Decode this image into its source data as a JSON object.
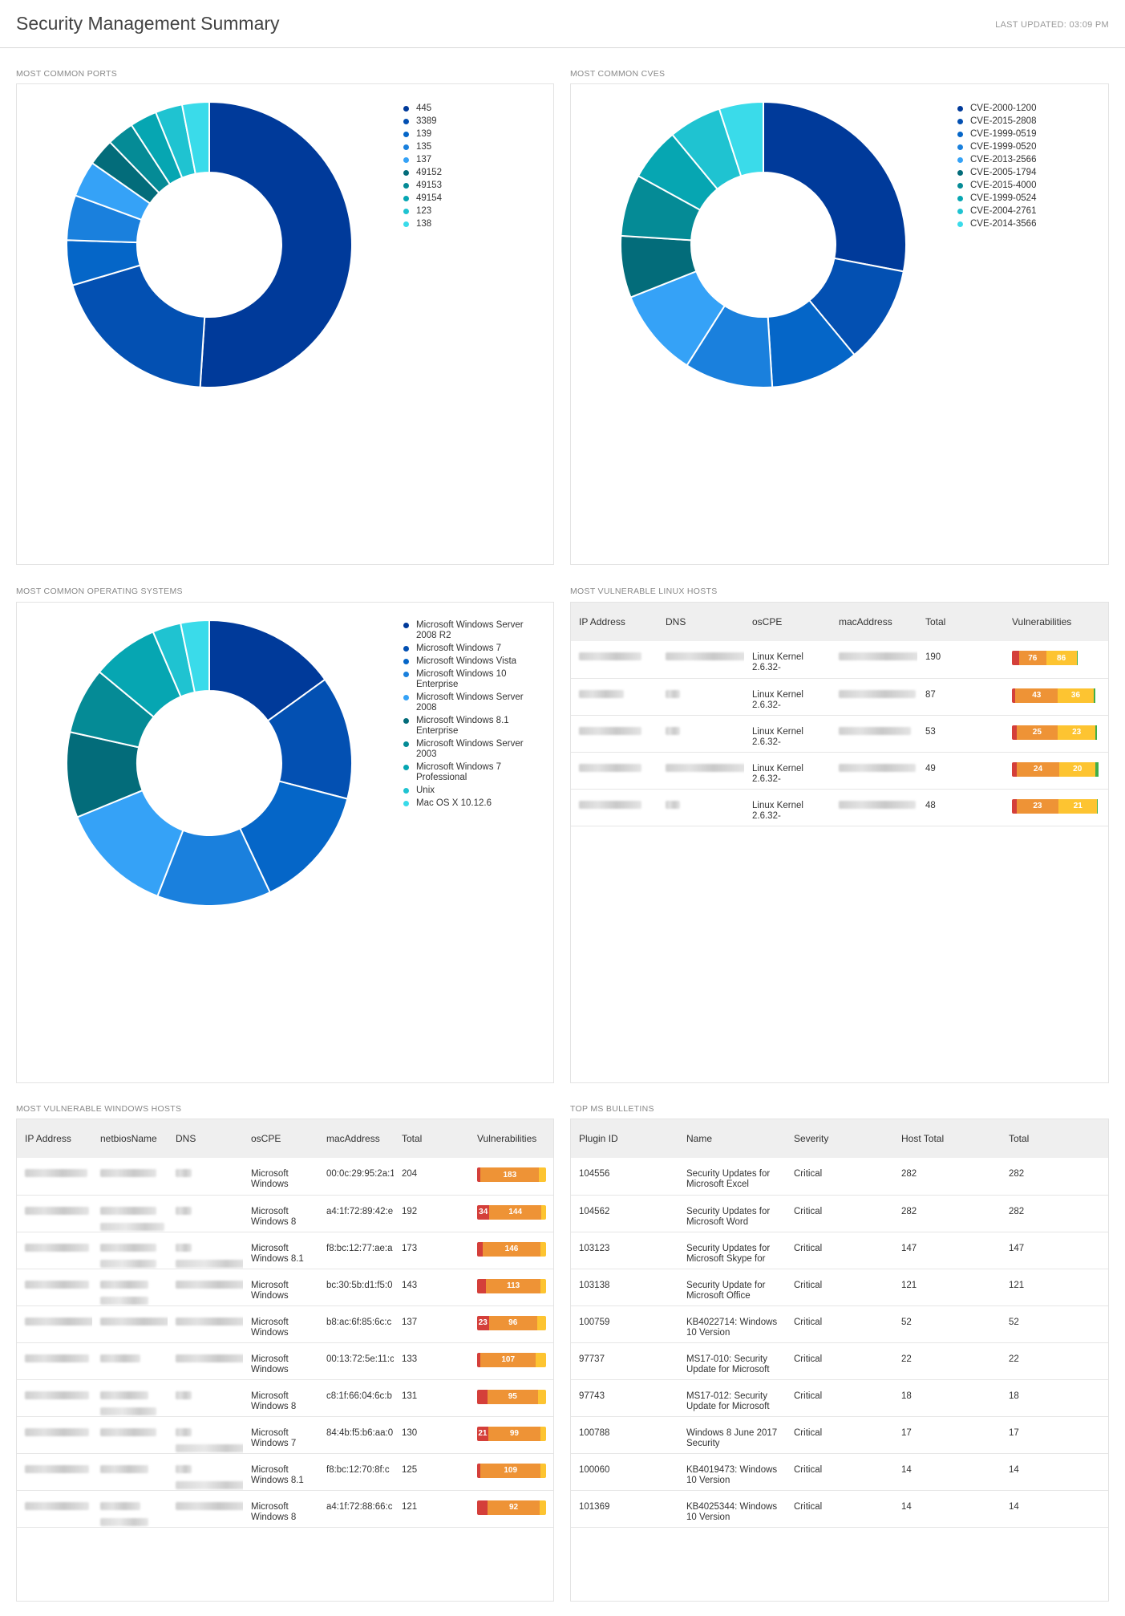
{
  "header": {
    "title": "Security Management Summary",
    "last_updated": "LAST UPDATED: 03:09 PM"
  },
  "ports": {
    "title": "MOST COMMON PORTS",
    "legend": [
      {
        "label": "445",
        "color": "#003a9a"
      },
      {
        "label": "3389",
        "color": "#0350b2"
      },
      {
        "label": "139",
        "color": "#0566c8"
      },
      {
        "label": "135",
        "color": "#1a80dd"
      },
      {
        "label": "137",
        "color": "#35a2f7"
      },
      {
        "label": "49152",
        "color": "#036c7a"
      },
      {
        "label": "49153",
        "color": "#058b96"
      },
      {
        "label": "49154",
        "color": "#06a6b2"
      },
      {
        "label": "123",
        "color": "#1fc3d1"
      },
      {
        "label": "138",
        "color": "#3adbea"
      }
    ],
    "chart_data": {
      "type": "pie",
      "categories": [
        "445",
        "3389",
        "139",
        "135",
        "137",
        "49152",
        "49153",
        "49154",
        "123",
        "138"
      ],
      "values": [
        50,
        19,
        5,
        5,
        4,
        3,
        3,
        3,
        3,
        3
      ]
    }
  },
  "cves": {
    "title": "MOST COMMON CVES",
    "legend": [
      {
        "label": "CVE-2000-1200",
        "color": "#003a9a"
      },
      {
        "label": "CVE-2015-2808",
        "color": "#0350b2"
      },
      {
        "label": "CVE-1999-0519",
        "color": "#0566c8"
      },
      {
        "label": "CVE-1999-0520",
        "color": "#1a80dd"
      },
      {
        "label": "CVE-2013-2566",
        "color": "#35a2f7"
      },
      {
        "label": "CVE-2005-1794",
        "color": "#036c7a"
      },
      {
        "label": "CVE-2015-4000",
        "color": "#058b96"
      },
      {
        "label": "CVE-1999-0524",
        "color": "#06a6b2"
      },
      {
        "label": "CVE-2004-2761",
        "color": "#1fc3d1"
      },
      {
        "label": "CVE-2014-3566",
        "color": "#3adbea"
      }
    ],
    "chart_data": {
      "type": "pie",
      "categories": [
        "CVE-2000-1200",
        "CVE-2015-2808",
        "CVE-1999-0519",
        "CVE-1999-0520",
        "CVE-2013-2566",
        "CVE-2005-1794",
        "CVE-2015-4000",
        "CVE-1999-0524",
        "CVE-2004-2761",
        "CVE-2014-3566"
      ],
      "values": [
        28,
        11,
        10,
        10,
        10,
        7,
        7,
        6,
        6,
        5
      ]
    }
  },
  "os": {
    "title": "MOST COMMON OPERATING SYSTEMS",
    "legend": [
      {
        "label": "Microsoft Windows Server 2008 R2",
        "color": "#003a9a"
      },
      {
        "label": "Microsoft Windows 7",
        "color": "#0350b2"
      },
      {
        "label": "Microsoft Windows Vista",
        "color": "#0566c8"
      },
      {
        "label": "Microsoft Windows 10 Enterprise",
        "color": "#1a80dd"
      },
      {
        "label": "Microsoft Windows Server 2008",
        "color": "#35a2f7"
      },
      {
        "label": "Microsoft Windows 8.1 Enterprise",
        "color": "#036c7a"
      },
      {
        "label": "Microsoft Windows Server 2003",
        "color": "#058b96"
      },
      {
        "label": "Microsoft Windows 7 Professional",
        "color": "#06a6b2"
      },
      {
        "label": "Unix",
        "color": "#1fc3d1"
      },
      {
        "label": "Mac OS X 10.12.6",
        "color": "#3adbea"
      }
    ],
    "chart_data": {
      "type": "pie",
      "categories": [
        "Microsoft Windows Server 2008 R2",
        "Microsoft Windows 7",
        "Microsoft Windows Vista",
        "Microsoft Windows 10 Enterprise",
        "Microsoft Windows Server 2008",
        "Microsoft Windows 8.1 Enterprise",
        "Microsoft Windows Server 2003",
        "Microsoft Windows 7 Professional",
        "Unix",
        "Mac OS X 10.12.6"
      ],
      "values": [
        14,
        13,
        13,
        12,
        12,
        9,
        7,
        7,
        3,
        3
      ]
    }
  },
  "linux": {
    "title": "MOST VULNERABLE LINUX HOSTS",
    "columns": [
      "IP Address",
      "DNS",
      "osCPE",
      "macAddress",
      "Total",
      "Vulnerabilities"
    ],
    "rows": [
      {
        "oscpe": "Linux Kernel 2.6.32-",
        "total": "190",
        "high": "76",
        "med": "86",
        "crit_w": 8,
        "high_w": 30,
        "med_w": 34,
        "low_w": 1
      },
      {
        "oscpe": "Linux Kernel 2.6.32-",
        "total": "87",
        "high": "43",
        "med": "36",
        "crit_w": 4,
        "high_w": 47,
        "med_w": 40,
        "low_w": 2
      },
      {
        "oscpe": "Linux Kernel 2.6.32-",
        "total": "53",
        "high": "25",
        "med": "23",
        "crit_w": 5,
        "high_w": 46,
        "med_w": 42,
        "low_w": 2
      },
      {
        "oscpe": "Linux Kernel 2.6.32-",
        "total": "49",
        "high": "24",
        "med": "20",
        "crit_w": 5,
        "high_w": 48,
        "med_w": 40,
        "low_w": 3
      },
      {
        "oscpe": "Linux Kernel 2.6.32-",
        "total": "48",
        "high": "23",
        "med": "21",
        "crit_w": 5,
        "high_w": 47,
        "med_w": 43,
        "low_w": 1
      }
    ]
  },
  "windows": {
    "title": "MOST VULNERABLE WINDOWS HOSTS",
    "columns": [
      "IP Address",
      "netbiosName",
      "DNS",
      "osCPE",
      "macAddress",
      "Total",
      "Vulnerabilities"
    ],
    "rows": [
      {
        "oscpe": "Microsoft Windows",
        "mac": "00:0c:29:95:2a:1",
        "total": "204",
        "crit": "",
        "high": "183",
        "crit_w": 5,
        "high_w": 85,
        "med_w": 10
      },
      {
        "oscpe": "Microsoft Windows 8",
        "mac": "a4:1f:72:89:42:e",
        "total": "192",
        "crit": "34",
        "high": "144",
        "crit_w": 18,
        "high_w": 75,
        "med_w": 7
      },
      {
        "oscpe": "Microsoft Windows 8.1",
        "mac": "f8:bc:12:77:ae:a",
        "total": "173",
        "crit": "",
        "high": "146",
        "crit_w": 8,
        "high_w": 84,
        "med_w": 8
      },
      {
        "oscpe": "Microsoft Windows",
        "mac": "bc:30:5b:d1:f5:0",
        "total": "143",
        "crit": "",
        "high": "113",
        "crit_w": 13,
        "high_w": 79,
        "med_w": 8
      },
      {
        "oscpe": "Microsoft Windows",
        "mac": "b8:ac:6f:85:6c:c",
        "total": "137",
        "crit": "23",
        "high": "96",
        "crit_w": 17,
        "high_w": 70,
        "med_w": 13
      },
      {
        "oscpe": "Microsoft Windows",
        "mac": "00:13:72:5e:11:c",
        "total": "133",
        "crit": "",
        "high": "107",
        "crit_w": 5,
        "high_w": 80,
        "med_w": 15
      },
      {
        "oscpe": "Microsoft Windows 8",
        "mac": "c8:1f:66:04:6c:b",
        "total": "131",
        "crit": "",
        "high": "95",
        "crit_w": 15,
        "high_w": 73,
        "med_w": 12
      },
      {
        "oscpe": "Microsoft Windows 7",
        "mac": "84:4b:f5:b6:aa:0",
        "total": "130",
        "crit": "21",
        "high": "99",
        "crit_w": 16,
        "high_w": 76,
        "med_w": 8
      },
      {
        "oscpe": "Microsoft Windows 8.1",
        "mac": "f8:bc:12:70:8f:c",
        "total": "125",
        "crit": "",
        "high": "109",
        "crit_w": 5,
        "high_w": 87,
        "med_w": 8
      },
      {
        "oscpe": "Microsoft Windows 8",
        "mac": "a4:1f:72:88:66:c",
        "total": "121",
        "crit": "",
        "high": "92",
        "crit_w": 15,
        "high_w": 76,
        "med_w": 9
      }
    ]
  },
  "bulletins": {
    "title": "TOP MS BULLETINS",
    "columns": [
      "Plugin ID",
      "Name",
      "Severity",
      "Host Total",
      "Total"
    ],
    "rows": [
      {
        "plugin": "104556",
        "name": "Security Updates for Microsoft Excel",
        "severity": "Critical",
        "host_total": "282",
        "total": "282"
      },
      {
        "plugin": "104562",
        "name": "Security Updates for Microsoft Word",
        "severity": "Critical",
        "host_total": "282",
        "total": "282"
      },
      {
        "plugin": "103123",
        "name": "Security Updates for Microsoft Skype for",
        "severity": "Critical",
        "host_total": "147",
        "total": "147"
      },
      {
        "plugin": "103138",
        "name": "Security Update for Microsoft Office",
        "severity": "Critical",
        "host_total": "121",
        "total": "121"
      },
      {
        "plugin": "100759",
        "name": "KB4022714: Windows 10 Version",
        "severity": "Critical",
        "host_total": "52",
        "total": "52"
      },
      {
        "plugin": "97737",
        "name": "MS17-010: Security Update for Microsoft",
        "severity": "Critical",
        "host_total": "22",
        "total": "22"
      },
      {
        "plugin": "97743",
        "name": "MS17-012: Security Update for Microsoft",
        "severity": "Critical",
        "host_total": "18",
        "total": "18"
      },
      {
        "plugin": "100788",
        "name": "Windows 8 June 2017 Security",
        "severity": "Critical",
        "host_total": "17",
        "total": "17"
      },
      {
        "plugin": "100060",
        "name": "KB4019473: Windows 10 Version",
        "severity": "Critical",
        "host_total": "14",
        "total": "14"
      },
      {
        "plugin": "101369",
        "name": "KB4025344: Windows 10 Version",
        "severity": "Critical",
        "host_total": "14",
        "total": "14"
      }
    ]
  }
}
